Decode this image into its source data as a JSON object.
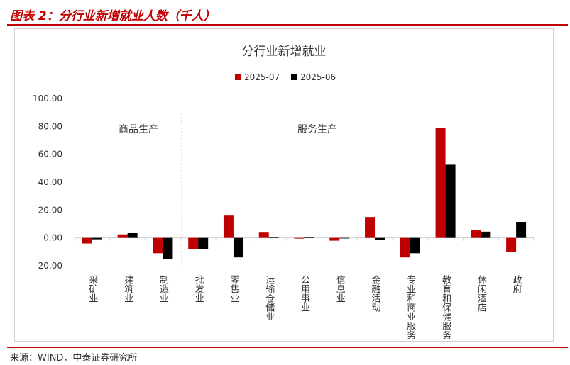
{
  "figure_title": "图表 2：分行业新增就业人数（千人）",
  "source": "来源：WIND，中泰证券研究所",
  "colors": {
    "accent": "#c00000",
    "series_2025_07": "#c00000",
    "series_2025_06": "#000000"
  },
  "chart_data": {
    "type": "bar",
    "title": "分行业新增就业",
    "legend_position": "top",
    "ylim": [
      -20,
      100
    ],
    "yticks": [
      "100.00",
      "80.00",
      "60.00",
      "40.00",
      "20.00",
      "0.00",
      "-20.00"
    ],
    "grid": false,
    "groups": [
      {
        "label": "商品生产"
      },
      {
        "label": "服务生产"
      }
    ],
    "categories": [
      "采矿业",
      "建筑业",
      "制造业",
      "批发业",
      "零售业",
      "运输仓储业",
      "公用事业",
      "信息业",
      "金融活动",
      "专业和商业服务",
      "教育和保健服务",
      "休闲酒店",
      "政府"
    ],
    "series": [
      {
        "name": "2025-07",
        "values": [
          -4,
          2.5,
          -11,
          -8,
          16,
          3.8,
          -0.5,
          -2,
          15,
          -14,
          79,
          5.4,
          -10
        ]
      },
      {
        "name": "2025-06",
        "values": [
          -1,
          3.4,
          -15,
          -8,
          -14,
          0.8,
          0.5,
          0,
          -1.5,
          -11,
          52.5,
          4.5,
          11.5
        ]
      }
    ]
  }
}
